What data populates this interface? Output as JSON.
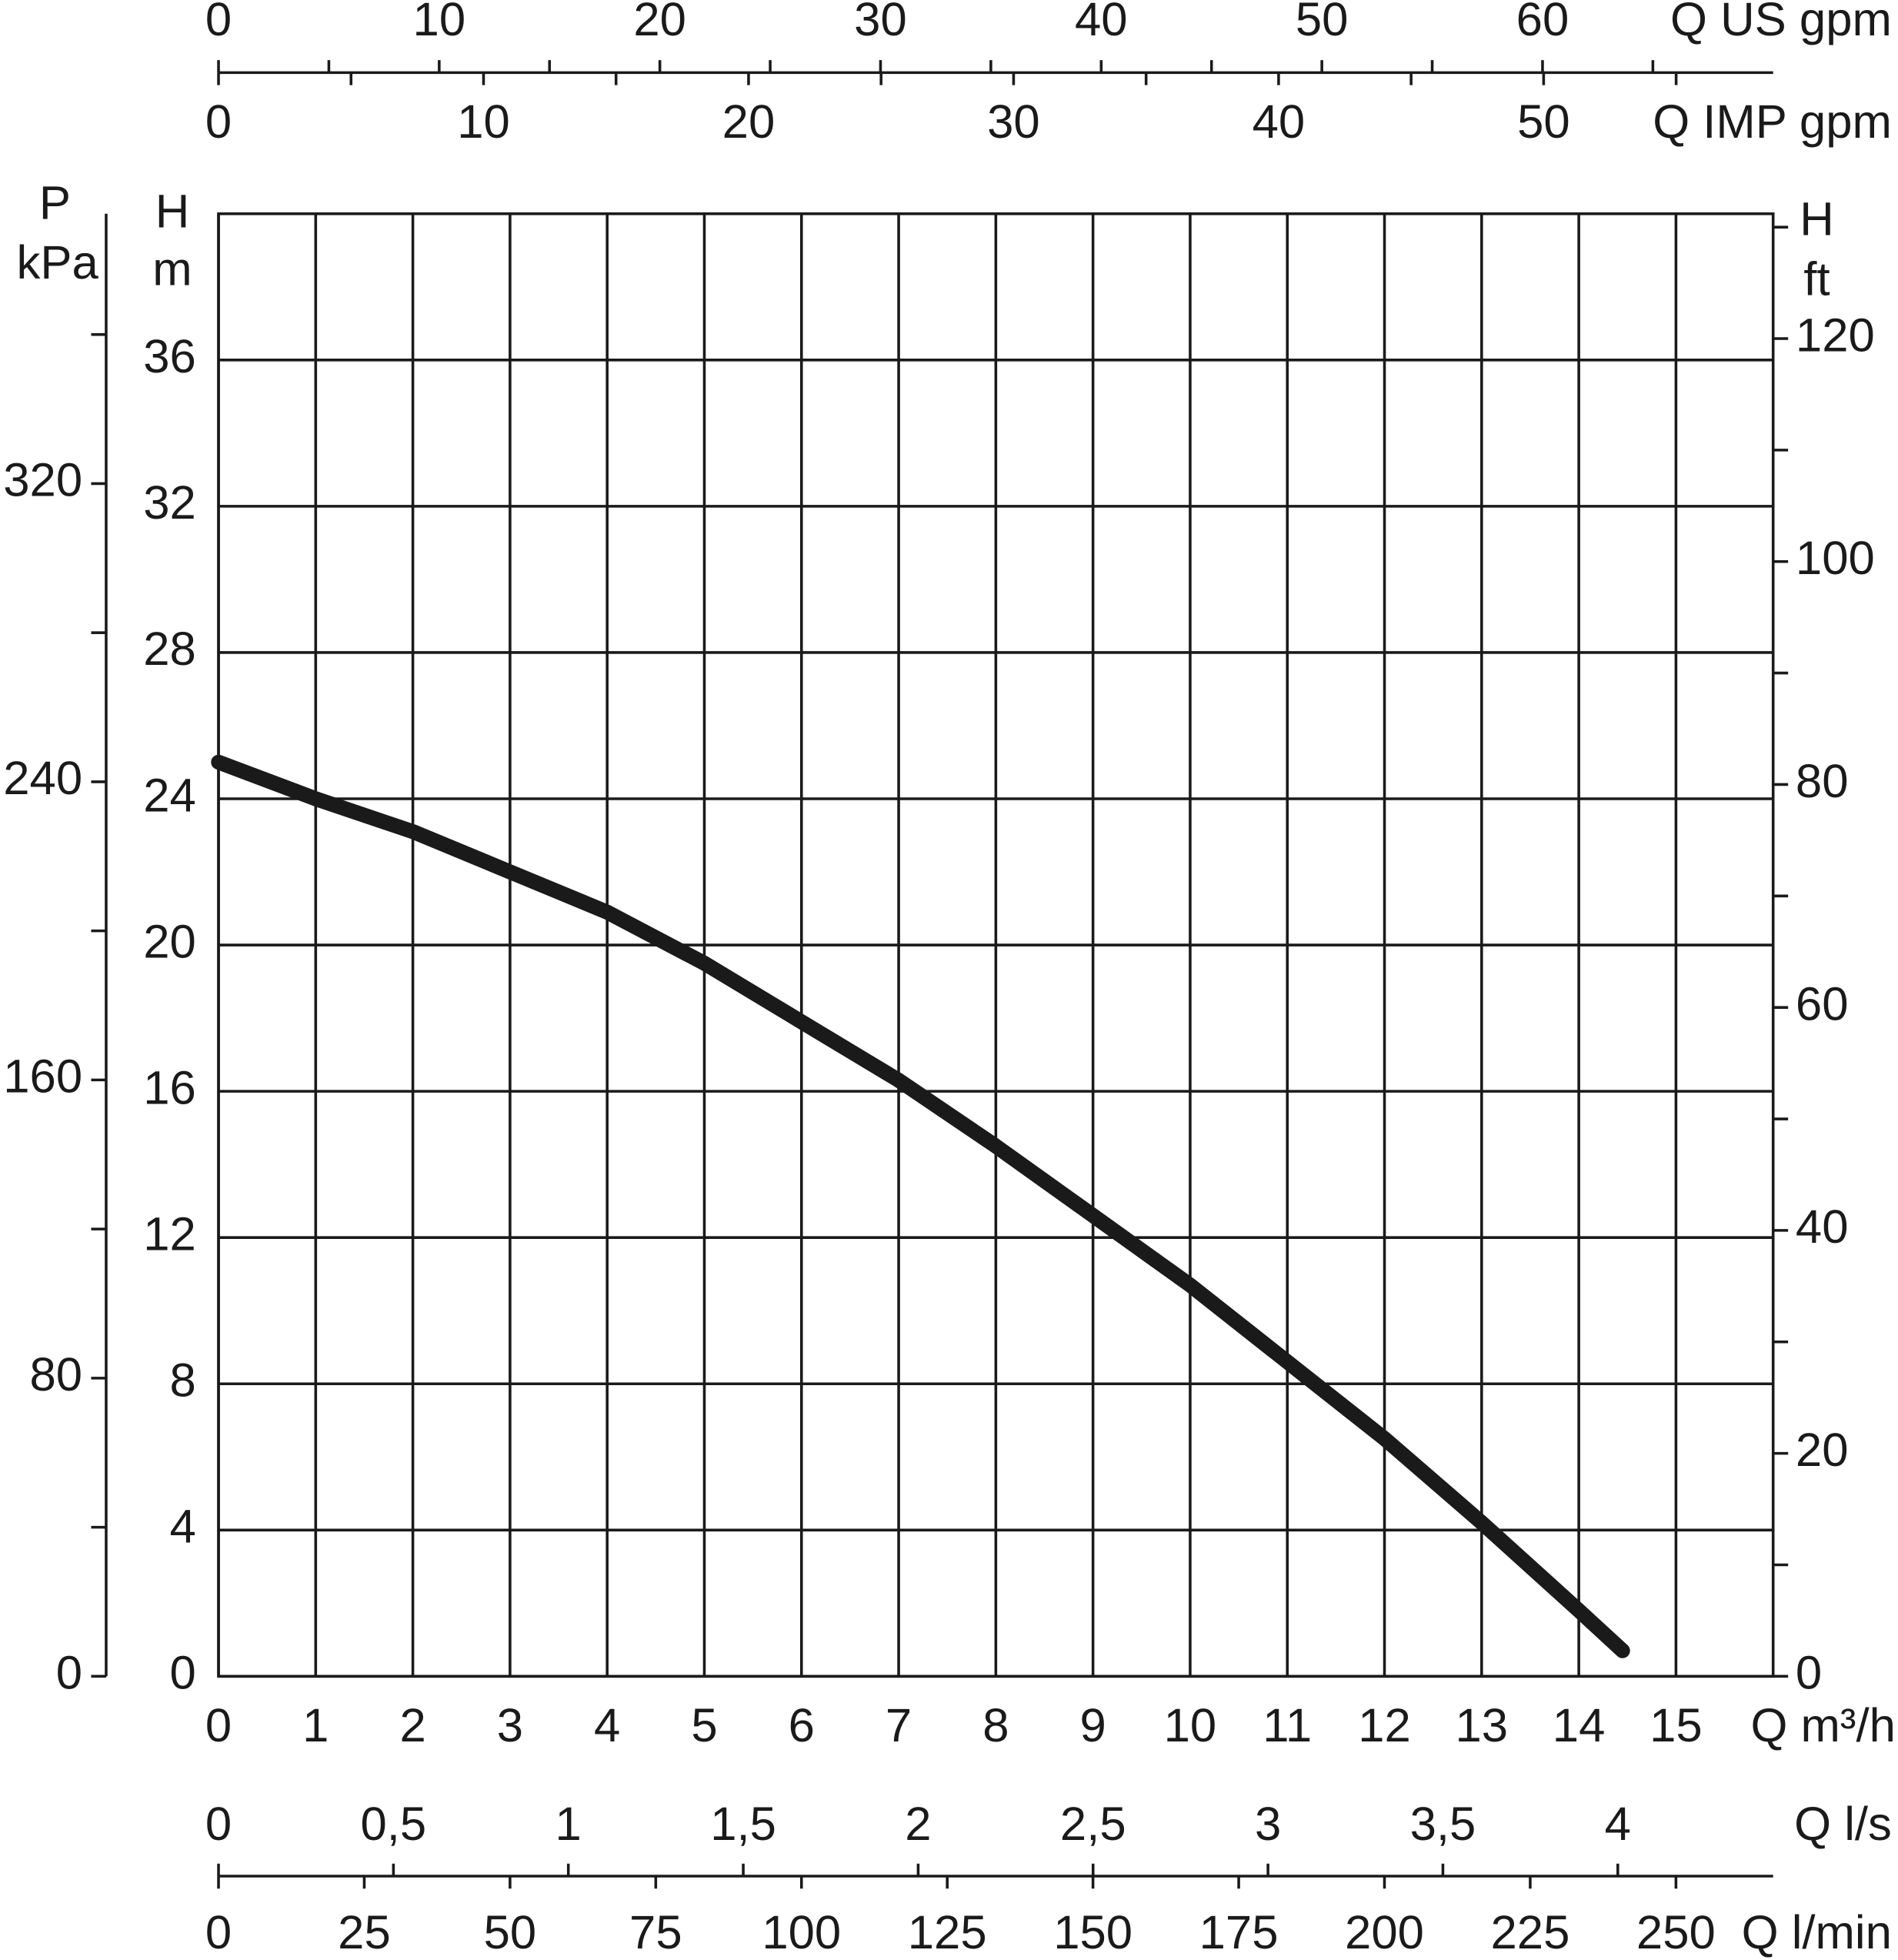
{
  "chart_data": {
    "type": "line",
    "x": [
      0,
      1,
      2,
      3,
      4,
      5,
      6,
      7,
      8,
      9,
      10,
      11,
      12,
      13,
      14,
      14.45
    ],
    "series": [
      {
        "color": "#1a1a1a",
        "values": [
          25.0,
          24.0,
          23.1,
          22.0,
          20.9,
          19.5,
          17.9,
          16.3,
          14.5,
          12.6,
          10.7,
          8.6,
          6.5,
          4.2,
          1.8,
          0.7
        ]
      }
    ],
    "xlabel": "Q m³/h",
    "xlim": [
      0,
      16
    ],
    "xticks": [
      0,
      1,
      2,
      3,
      4,
      5,
      6,
      7,
      8,
      9,
      10,
      11,
      12,
      13,
      14,
      15
    ],
    "ylabel_lines": [
      "H",
      "m"
    ],
    "ylim": [
      0,
      40
    ],
    "yticks": [
      0,
      4,
      8,
      12,
      16,
      20,
      24,
      28,
      32,
      36
    ],
    "grid": true,
    "extra_x_axes": [
      {
        "side": "top",
        "label": "Q US gpm",
        "xlim": [
          0,
          70.45
        ],
        "xticks": [
          0,
          10,
          20,
          30,
          40,
          50,
          60
        ],
        "minor_ticks": [
          5,
          15,
          25,
          35,
          45,
          55,
          65
        ]
      },
      {
        "side": "top",
        "label": "Q IMP gpm",
        "xlim": [
          0,
          58.66
        ],
        "xticks": [
          0,
          10,
          20,
          30,
          40,
          50
        ],
        "minor_ticks": [
          5,
          15,
          25,
          35,
          45,
          55
        ]
      },
      {
        "side": "bottom",
        "label": "Q l/s",
        "xlim": [
          0,
          4.444
        ],
        "xticks": [
          0,
          {
            "value": 0.5,
            "label": "0,5"
          },
          1,
          {
            "value": 1.5,
            "label": "1,5"
          },
          2,
          {
            "value": 2.5,
            "label": "2,5"
          },
          3,
          {
            "value": 3.5,
            "label": "3,5"
          },
          4
        ],
        "minor_ticks": []
      },
      {
        "side": "bottom",
        "label": "Q l/min",
        "xlim": [
          0,
          266.67
        ],
        "xticks": [
          0,
          25,
          50,
          75,
          100,
          125,
          150,
          175,
          200,
          225,
          250
        ],
        "minor_ticks": []
      }
    ],
    "extra_y_axes": [
      {
        "side": "left",
        "label_lines": [
          "P",
          "kPa"
        ],
        "ylim": [
          0,
          392.4
        ],
        "yticks": [
          0,
          80,
          160,
          240,
          320
        ],
        "minor_ticks": [
          40,
          120,
          200,
          280,
          360
        ]
      },
      {
        "side": "right",
        "label_lines": [
          "H",
          "ft"
        ],
        "ylim": [
          0,
          131.2
        ],
        "yticks": [
          0,
          20,
          40,
          60,
          80,
          100,
          120
        ],
        "minor_ticks": [
          10,
          30,
          50,
          70,
          90,
          110,
          130
        ]
      }
    ]
  }
}
